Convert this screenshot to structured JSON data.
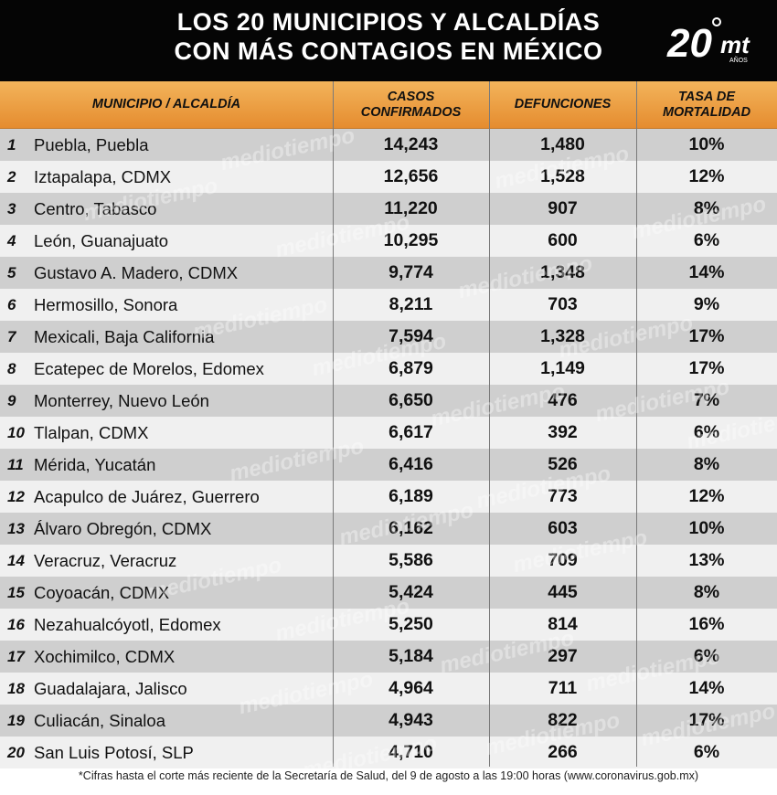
{
  "title": {
    "line1": "LOS 20 MUNICIPIOS Y ALCALDÍAS",
    "line2": "CON MÁS CONTAGIOS EN MÉXICO"
  },
  "logo": {
    "number": "20",
    "letters": "mt",
    "small": "AÑOS"
  },
  "watermark": "mediotiempo",
  "columns": {
    "municipio": "MUNICIPIO / ALCALDÍA",
    "casos": "CASOS\nCONFIRMADOS",
    "defunciones": "DEFUNCIONES",
    "tasa": "TASA DE\nMORTALIDAD"
  },
  "rows": [
    {
      "n": "1",
      "name": "Puebla, Puebla",
      "cases": "14,243",
      "deaths": "1,480",
      "rate": "10%"
    },
    {
      "n": "2",
      "name": "Iztapalapa, CDMX",
      "cases": "12,656",
      "deaths": "1,528",
      "rate": "12%"
    },
    {
      "n": "3",
      "name": "Centro, Tabasco",
      "cases": "11,220",
      "deaths": "907",
      "rate": "8%"
    },
    {
      "n": "4",
      "name": "León, Guanajuato",
      "cases": "10,295",
      "deaths": "600",
      "rate": "6%"
    },
    {
      "n": "5",
      "name": "Gustavo A. Madero, CDMX",
      "cases": "9,774",
      "deaths": "1,348",
      "rate": "14%"
    },
    {
      "n": "6",
      "name": "Hermosillo, Sonora",
      "cases": "8,211",
      "deaths": "703",
      "rate": "9%"
    },
    {
      "n": "7",
      "name": "Mexicali, Baja California",
      "cases": "7,594",
      "deaths": "1,328",
      "rate": "17%"
    },
    {
      "n": "8",
      "name": "Ecatepec de Morelos, Edomex",
      "cases": "6,879",
      "deaths": "1,149",
      "rate": "17%"
    },
    {
      "n": "9",
      "name": "Monterrey, Nuevo León",
      "cases": "6,650",
      "deaths": "476",
      "rate": "7%"
    },
    {
      "n": "10",
      "name": "Tlalpan, CDMX",
      "cases": "6,617",
      "deaths": "392",
      "rate": "6%"
    },
    {
      "n": "11",
      "name": "Mérida, Yucatán",
      "cases": "6,416",
      "deaths": "526",
      "rate": "8%"
    },
    {
      "n": "12",
      "name": "Acapulco de Juárez, Guerrero",
      "cases": "6,189",
      "deaths": "773",
      "rate": "12%"
    },
    {
      "n": "13",
      "name": "Álvaro Obregón, CDMX",
      "cases": "6,162",
      "deaths": "603",
      "rate": "10%"
    },
    {
      "n": "14",
      "name": "Veracruz, Veracruz",
      "cases": "5,586",
      "deaths": "709",
      "rate": "13%"
    },
    {
      "n": "15",
      "name": "Coyoacán, CDMX",
      "cases": "5,424",
      "deaths": "445",
      "rate": "8%"
    },
    {
      "n": "16",
      "name": "Nezahualcóyotl, Edomex",
      "cases": "5,250",
      "deaths": "814",
      "rate": "16%"
    },
    {
      "n": "17",
      "name": "Xochimilco, CDMX",
      "cases": "5,184",
      "deaths": "297",
      "rate": "6%"
    },
    {
      "n": "18",
      "name": "Guadalajara, Jalisco",
      "cases": "4,964",
      "deaths": "711",
      "rate": "14%"
    },
    {
      "n": "19",
      "name": "Culiacán, Sinaloa",
      "cases": "4,943",
      "deaths": "822",
      "rate": "17%"
    },
    {
      "n": "20",
      "name": "San Luis Potosí, SLP",
      "cases": "4,710",
      "deaths": "266",
      "rate": "6%"
    }
  ],
  "footnote": "*Cifras hasta el corte más reciente de la Secretaría de Salud, del 9 de agosto a las 19:00 horas (www.coronavirus.gob.mx)",
  "colors": {
    "header_bg": "#050505",
    "column_header": "#eea04a",
    "row_dark": "#cfcfcf",
    "row_light": "#f0f0f0",
    "logo_accent": "#f5a623"
  }
}
